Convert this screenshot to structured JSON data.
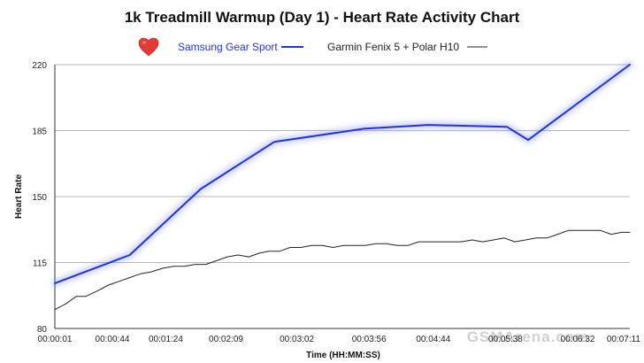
{
  "chart_data": {
    "type": "line",
    "title": "1k Treadmill Warmup (Day 1) - Heart Rate Activity Chart",
    "xlabel": "Time (HH:MM:SS)",
    "ylabel": "Heart Rate",
    "ylim": [
      80,
      220
    ],
    "yticks": [
      80,
      115,
      150,
      185,
      220
    ],
    "grid": "horizontal",
    "legend": "top",
    "legend_icon": "heart-icon",
    "xlim": [
      1,
      431
    ],
    "xticks": [
      {
        "t": 1,
        "label": "00:00:01"
      },
      {
        "t": 44,
        "label": "00:00:44"
      },
      {
        "t": 84,
        "label": "00:01:24"
      },
      {
        "t": 129,
        "label": "00:02:09"
      },
      {
        "t": 182,
        "label": "00:03:02"
      },
      {
        "t": 236,
        "label": "00:03:56"
      },
      {
        "t": 284,
        "label": "00:04:44"
      },
      {
        "t": 338,
        "label": "00:05:38"
      },
      {
        "t": 392,
        "label": "00:06:32"
      },
      {
        "t": 431,
        "label": "00:07:11"
      }
    ],
    "series": [
      {
        "name": "Samsung Gear Sport",
        "color": "#2233dd",
        "glow": true,
        "x": [
          1,
          57,
          110,
          165,
          232,
          280,
          339,
          355,
          431
        ],
        "y": [
          104,
          119,
          154,
          179,
          186,
          188,
          187,
          180,
          220
        ]
      },
      {
        "name": "Garmin Fenix 5 + Polar H10",
        "color": "#222222",
        "glow": false,
        "x": [
          1,
          9,
          17,
          24,
          33,
          41,
          49,
          57,
          65,
          73,
          82,
          90,
          98,
          106,
          114,
          122,
          130,
          138,
          146,
          154,
          161,
          169,
          177,
          185,
          193,
          201,
          209,
          217,
          225,
          233,
          241,
          249,
          257,
          265,
          273,
          281,
          289,
          297,
          305,
          313,
          321,
          329,
          337,
          345,
          353,
          361,
          369,
          377,
          385,
          393,
          401,
          409,
          417,
          425,
          431
        ],
        "y": [
          90,
          93,
          97,
          97,
          100,
          103,
          105,
          107,
          109,
          110,
          112,
          113,
          113,
          114,
          114,
          116,
          118,
          119,
          118,
          120,
          121,
          121,
          123,
          123,
          124,
          124,
          123,
          124,
          124,
          124,
          125,
          125,
          124,
          124,
          126,
          126,
          126,
          126,
          126,
          127,
          126,
          127,
          128,
          126,
          127,
          128,
          128,
          130,
          132,
          132,
          132,
          132,
          130,
          131,
          131
        ]
      }
    ]
  },
  "watermark": "GSMArena.com"
}
